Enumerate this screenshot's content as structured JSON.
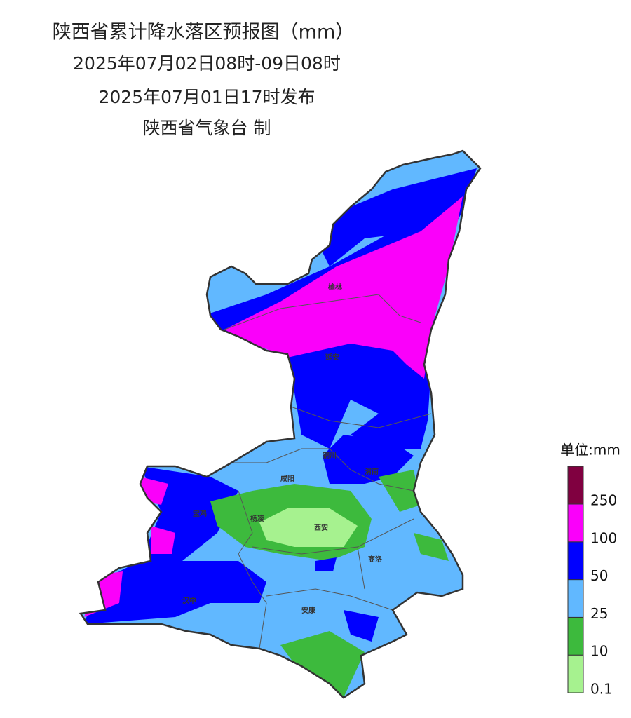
{
  "header": {
    "title": "陕西省累计降水落区预报图（mm）",
    "period": "2025年07月02日08时-09日08时",
    "issued": "2025年07月01日17时发布",
    "issuer": "陕西省气象台 制"
  },
  "cities": [
    "榆林",
    "延安",
    "铜川",
    "渭南",
    "咸阳",
    "宝鸡",
    "杨凌",
    "西安",
    "商洛",
    "汉中",
    "安康"
  ],
  "legend": {
    "unit": "单位:mm",
    "levels": [
      0.1,
      10,
      25,
      50,
      100,
      250
    ],
    "colors": [
      "#a6f28f",
      "#3dba3d",
      "#61b8ff",
      "#0000ff",
      "#fa00fa",
      "#800040"
    ]
  }
}
